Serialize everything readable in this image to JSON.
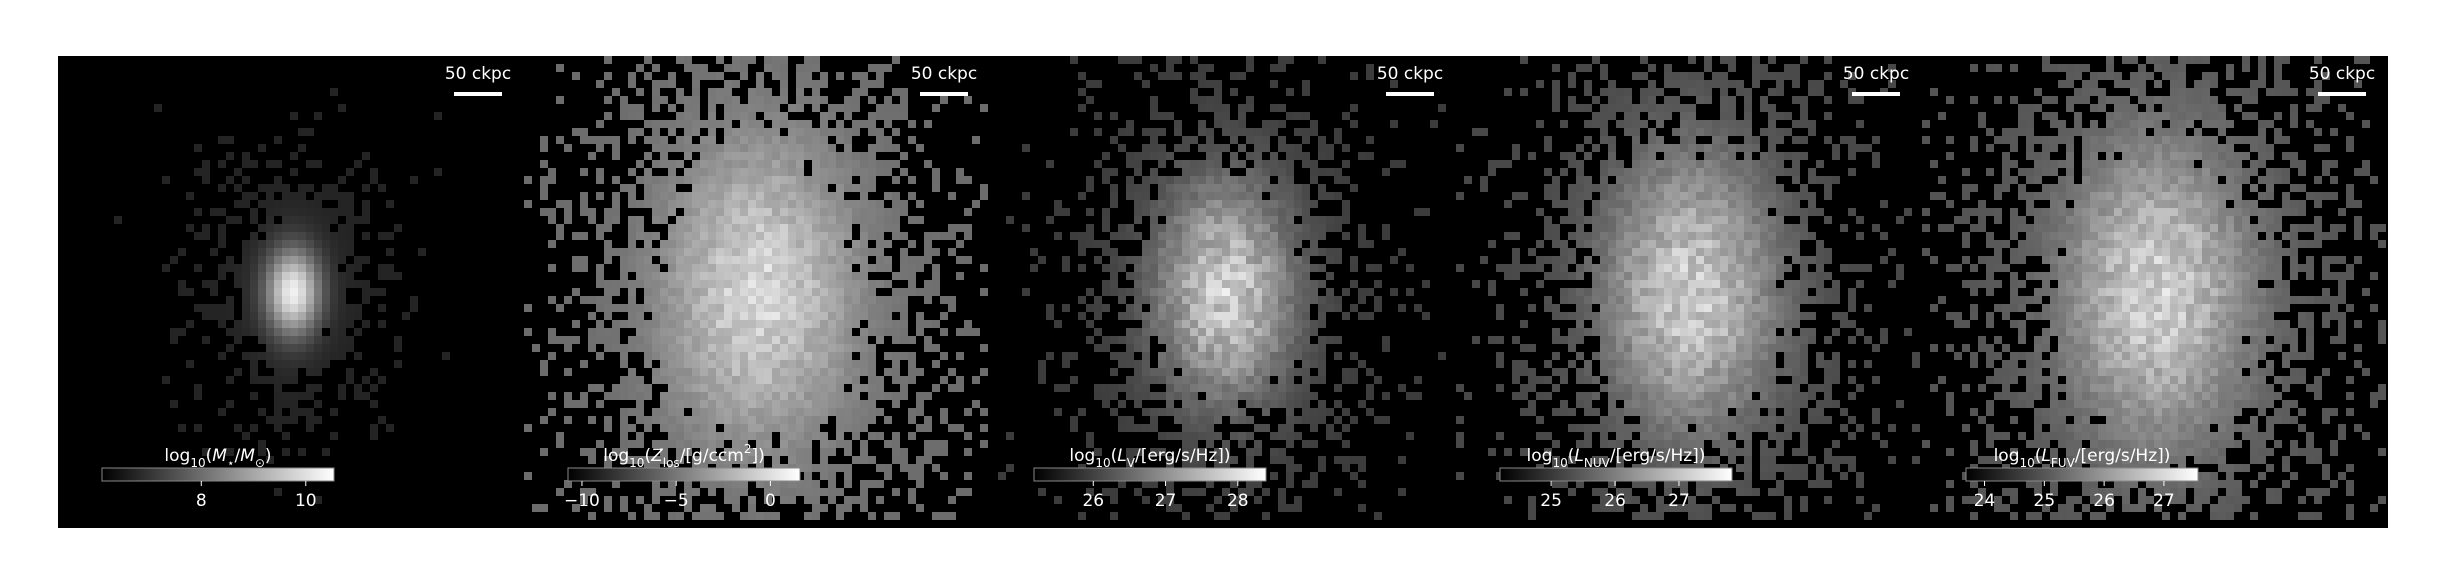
{
  "chart_data": [
    {
      "type": "image",
      "scale_bar": "50 ckpc",
      "colorbar_label": [
        {
          "text": "log",
          "style": "normal"
        },
        {
          "text": "10",
          "style": "sub"
        },
        {
          "text": "(",
          "style": "normal"
        },
        {
          "text": "M",
          "style": "italic"
        },
        {
          "text": "⋆",
          "style": "sub"
        },
        {
          "text": "/",
          "style": "normal"
        },
        {
          "text": "M",
          "style": "italic"
        },
        {
          "text": "⊙",
          "style": "sub"
        },
        {
          "text": ")",
          "style": "normal"
        }
      ],
      "clim": [
        6.1,
        10.54
      ],
      "cticks": [
        8,
        10
      ]
    },
    {
      "type": "image",
      "scale_bar": "50 ckpc",
      "colorbar_label": [
        {
          "text": "log",
          "style": "normal"
        },
        {
          "text": "10",
          "style": "sub"
        },
        {
          "text": "(",
          "style": "normal"
        },
        {
          "text": "Z",
          "style": "italic"
        },
        {
          "text": "los",
          "style": "sub"
        },
        {
          "text": "/[g/ccm",
          "style": "normal"
        },
        {
          "text": "2",
          "style": "sup"
        },
        {
          "text": "])",
          "style": "normal"
        }
      ],
      "clim": [
        -10.74,
        1.57
      ],
      "cticks": [
        {
          "value": -10,
          "label": "−10"
        },
        {
          "value": -5,
          "label": "−5"
        },
        0
      ]
    },
    {
      "type": "image",
      "scale_bar": "50 ckpc",
      "colorbar_label": [
        {
          "text": "log",
          "style": "normal"
        },
        {
          "text": "10",
          "style": "sub"
        },
        {
          "text": "(",
          "style": "normal"
        },
        {
          "text": "L",
          "style": "italic"
        },
        {
          "text": "V",
          "style": "sub"
        },
        {
          "text": "/[erg/s/Hz])",
          "style": "normal"
        }
      ],
      "clim": [
        25.18,
        28.39
      ],
      "cticks": [
        26,
        27,
        28
      ]
    },
    {
      "type": "image",
      "scale_bar": "50 ckpc",
      "colorbar_label": [
        {
          "text": "log",
          "style": "normal"
        },
        {
          "text": "10",
          "style": "sub"
        },
        {
          "text": "(",
          "style": "normal"
        },
        {
          "text": "L",
          "style": "italic"
        },
        {
          "text": "NUV",
          "style": "sub"
        },
        {
          "text": "/[erg/s/Hz])",
          "style": "normal"
        }
      ],
      "clim": [
        24.2,
        27.83
      ],
      "cticks": [
        25,
        26,
        27
      ]
    },
    {
      "type": "image",
      "scale_bar": "50 ckpc",
      "colorbar_label": [
        {
          "text": "log",
          "style": "normal"
        },
        {
          "text": "10",
          "style": "sub"
        },
        {
          "text": "(",
          "style": "normal"
        },
        {
          "text": "L",
          "style": "italic"
        },
        {
          "text": "FUV",
          "style": "sub"
        },
        {
          "text": "/[erg/s/Hz])",
          "style": "normal"
        }
      ],
      "clim": [
        23.69,
        27.57
      ],
      "cticks": [
        24,
        25,
        26,
        27
      ]
    }
  ]
}
